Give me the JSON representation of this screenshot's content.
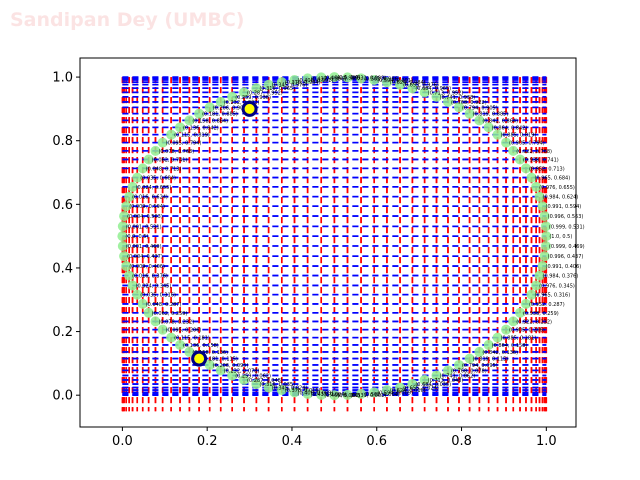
{
  "watermark": "Sandipan Dey (UMBC)",
  "colors": {
    "circle_points": "#90ee90",
    "vertical_lines": "#ff0000",
    "horizontal_lines": "#0000ff",
    "marker_edge": "#000080",
    "marker_fill": "#ffff00"
  },
  "chart_data": {
    "type": "scatter",
    "title": "",
    "xlabel": "",
    "ylabel": "",
    "xlim": [
      -0.1,
      1.07
    ],
    "ylim": [
      -0.1,
      1.06
    ],
    "xticks": [
      "0.0",
      "0.2",
      "0.4",
      "0.6",
      "0.8",
      "1.0"
    ],
    "yticks": [
      "0.0",
      "0.2",
      "0.4",
      "0.6",
      "0.8",
      "1.0"
    ],
    "grid": false,
    "points": [
      {
        "x": 0.5,
        "y": 0.0
      },
      {
        "x": 0.531,
        "y": 0.001
      },
      {
        "x": 0.563,
        "y": 0.004
      },
      {
        "x": 0.594,
        "y": 0.009
      },
      {
        "x": 0.624,
        "y": 0.016
      },
      {
        "x": 0.655,
        "y": 0.024
      },
      {
        "x": 0.684,
        "y": 0.035
      },
      {
        "x": 0.713,
        "y": 0.048
      },
      {
        "x": 0.741,
        "y": 0.062
      },
      {
        "x": 0.768,
        "y": 0.078
      },
      {
        "x": 0.794,
        "y": 0.095
      },
      {
        "x": 0.819,
        "y": 0.115
      },
      {
        "x": 0.842,
        "y": 0.136
      },
      {
        "x": 0.864,
        "y": 0.158
      },
      {
        "x": 0.885,
        "y": 0.181
      },
      {
        "x": 0.905,
        "y": 0.206
      },
      {
        "x": 0.922,
        "y": 0.232
      },
      {
        "x": 0.938,
        "y": 0.259
      },
      {
        "x": 0.952,
        "y": 0.287
      },
      {
        "x": 0.965,
        "y": 0.316
      },
      {
        "x": 0.976,
        "y": 0.345
      },
      {
        "x": 0.984,
        "y": 0.376
      },
      {
        "x": 0.991,
        "y": 0.406
      },
      {
        "x": 0.996,
        "y": 0.437
      },
      {
        "x": 0.999,
        "y": 0.469
      },
      {
        "x": 1.0,
        "y": 0.5
      },
      {
        "x": 0.999,
        "y": 0.531
      },
      {
        "x": 0.996,
        "y": 0.563
      },
      {
        "x": 0.991,
        "y": 0.594
      },
      {
        "x": 0.984,
        "y": 0.624
      },
      {
        "x": 0.976,
        "y": 0.655
      },
      {
        "x": 0.965,
        "y": 0.684
      },
      {
        "x": 0.952,
        "y": 0.713
      },
      {
        "x": 0.938,
        "y": 0.741
      },
      {
        "x": 0.922,
        "y": 0.768
      },
      {
        "x": 0.905,
        "y": 0.794
      },
      {
        "x": 0.885,
        "y": 0.819
      },
      {
        "x": 0.864,
        "y": 0.842
      },
      {
        "x": 0.842,
        "y": 0.864
      },
      {
        "x": 0.819,
        "y": 0.885
      },
      {
        "x": 0.794,
        "y": 0.905
      },
      {
        "x": 0.768,
        "y": 0.922
      },
      {
        "x": 0.741,
        "y": 0.938
      },
      {
        "x": 0.713,
        "y": 0.952
      },
      {
        "x": 0.684,
        "y": 0.965
      },
      {
        "x": 0.655,
        "y": 0.976
      },
      {
        "x": 0.624,
        "y": 0.984
      },
      {
        "x": 0.594,
        "y": 0.991
      },
      {
        "x": 0.563,
        "y": 0.996
      },
      {
        "x": 0.531,
        "y": 0.999
      },
      {
        "x": 0.5,
        "y": 1.0
      },
      {
        "x": 0.469,
        "y": 0.999
      },
      {
        "x": 0.437,
        "y": 0.996
      },
      {
        "x": 0.406,
        "y": 0.991
      },
      {
        "x": 0.376,
        "y": 0.984
      },
      {
        "x": 0.345,
        "y": 0.976
      },
      {
        "x": 0.316,
        "y": 0.965
      },
      {
        "x": 0.287,
        "y": 0.952
      },
      {
        "x": 0.259,
        "y": 0.938
      },
      {
        "x": 0.232,
        "y": 0.922
      },
      {
        "x": 0.206,
        "y": 0.905
      },
      {
        "x": 0.181,
        "y": 0.885
      },
      {
        "x": 0.158,
        "y": 0.864
      },
      {
        "x": 0.136,
        "y": 0.842
      },
      {
        "x": 0.115,
        "y": 0.819
      },
      {
        "x": 0.095,
        "y": 0.794
      },
      {
        "x": 0.078,
        "y": 0.768
      },
      {
        "x": 0.062,
        "y": 0.741
      },
      {
        "x": 0.048,
        "y": 0.713
      },
      {
        "x": 0.035,
        "y": 0.684
      },
      {
        "x": 0.024,
        "y": 0.655
      },
      {
        "x": 0.016,
        "y": 0.624
      },
      {
        "x": 0.009,
        "y": 0.594
      },
      {
        "x": 0.004,
        "y": 0.563
      },
      {
        "x": 0.001,
        "y": 0.531
      },
      {
        "x": 0.0,
        "y": 0.5
      },
      {
        "x": 0.001,
        "y": 0.469
      },
      {
        "x": 0.004,
        "y": 0.437
      },
      {
        "x": 0.009,
        "y": 0.406
      },
      {
        "x": 0.016,
        "y": 0.376
      },
      {
        "x": 0.024,
        "y": 0.345
      },
      {
        "x": 0.035,
        "y": 0.316
      },
      {
        "x": 0.048,
        "y": 0.287
      },
      {
        "x": 0.062,
        "y": 0.259
      },
      {
        "x": 0.078,
        "y": 0.232
      },
      {
        "x": 0.095,
        "y": 0.206
      },
      {
        "x": 0.115,
        "y": 0.181
      },
      {
        "x": 0.136,
        "y": 0.158
      },
      {
        "x": 0.158,
        "y": 0.136
      },
      {
        "x": 0.181,
        "y": 0.115
      },
      {
        "x": 0.206,
        "y": 0.095
      },
      {
        "x": 0.232,
        "y": 0.078
      },
      {
        "x": 0.259,
        "y": 0.062
      },
      {
        "x": 0.287,
        "y": 0.048
      },
      {
        "x": 0.316,
        "y": 0.035
      },
      {
        "x": 0.345,
        "y": 0.024
      },
      {
        "x": 0.376,
        "y": 0.016
      },
      {
        "x": 0.406,
        "y": 0.009
      },
      {
        "x": 0.437,
        "y": 0.004
      },
      {
        "x": 0.469,
        "y": 0.001
      }
    ],
    "highlighted_points": [
      {
        "x": 0.181,
        "y": 0.115
      },
      {
        "x": 0.3,
        "y": 0.9
      }
    ]
  }
}
